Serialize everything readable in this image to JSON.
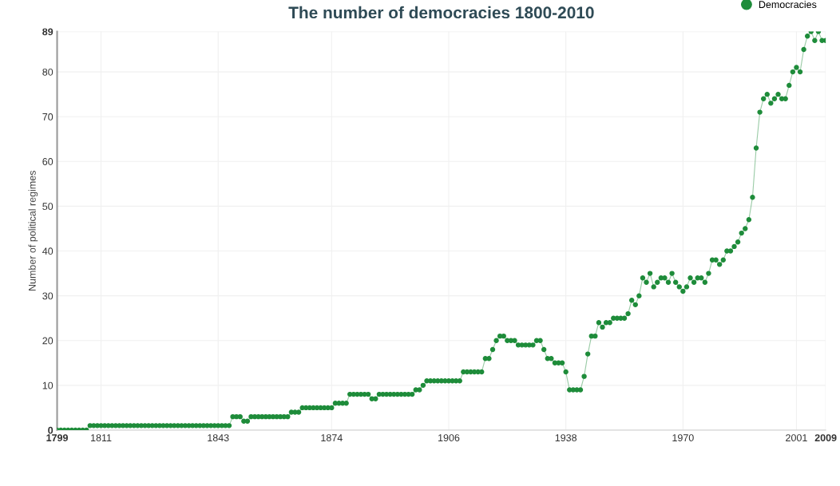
{
  "chart_data": {
    "type": "line",
    "title": "The number of democracies 1800-2010",
    "ylabel": "Number of political regimes",
    "x": [
      1799,
      1800,
      1801,
      1802,
      1803,
      1804,
      1805,
      1806,
      1807,
      1808,
      1809,
      1810,
      1811,
      1812,
      1813,
      1814,
      1815,
      1816,
      1817,
      1818,
      1819,
      1820,
      1821,
      1822,
      1823,
      1824,
      1825,
      1826,
      1827,
      1828,
      1829,
      1830,
      1831,
      1832,
      1833,
      1834,
      1835,
      1836,
      1837,
      1838,
      1839,
      1840,
      1841,
      1842,
      1843,
      1844,
      1845,
      1846,
      1847,
      1848,
      1849,
      1850,
      1851,
      1852,
      1853,
      1854,
      1855,
      1856,
      1857,
      1858,
      1859,
      1860,
      1861,
      1862,
      1863,
      1864,
      1865,
      1866,
      1867,
      1868,
      1869,
      1870,
      1871,
      1872,
      1873,
      1874,
      1875,
      1876,
      1877,
      1878,
      1879,
      1880,
      1881,
      1882,
      1883,
      1884,
      1885,
      1886,
      1887,
      1888,
      1889,
      1890,
      1891,
      1892,
      1893,
      1894,
      1895,
      1896,
      1897,
      1898,
      1899,
      1900,
      1901,
      1902,
      1903,
      1904,
      1905,
      1906,
      1907,
      1908,
      1909,
      1910,
      1911,
      1912,
      1913,
      1914,
      1915,
      1916,
      1917,
      1918,
      1919,
      1920,
      1921,
      1922,
      1923,
      1924,
      1925,
      1926,
      1927,
      1928,
      1929,
      1930,
      1931,
      1932,
      1933,
      1934,
      1935,
      1936,
      1937,
      1938,
      1939,
      1940,
      1941,
      1942,
      1943,
      1944,
      1945,
      1946,
      1947,
      1948,
      1949,
      1950,
      1951,
      1952,
      1953,
      1954,
      1955,
      1956,
      1957,
      1958,
      1959,
      1960,
      1961,
      1962,
      1963,
      1964,
      1965,
      1966,
      1967,
      1968,
      1969,
      1970,
      1971,
      1972,
      1973,
      1974,
      1975,
      1976,
      1977,
      1978,
      1979,
      1980,
      1981,
      1982,
      1983,
      1984,
      1985,
      1986,
      1987,
      1988,
      1989,
      1990,
      1991,
      1992,
      1993,
      1994,
      1995,
      1996,
      1997,
      1998,
      1999,
      2000,
      2001,
      2002,
      2003,
      2004,
      2005,
      2006,
      2007,
      2008,
      2009
    ],
    "series": [
      {
        "name": "Democracies",
        "color": "#1e8c3a",
        "values": [
          0,
          0,
          0,
          0,
          0,
          0,
          0,
          0,
          0,
          1,
          1,
          1,
          1,
          1,
          1,
          1,
          1,
          1,
          1,
          1,
          1,
          1,
          1,
          1,
          1,
          1,
          1,
          1,
          1,
          1,
          1,
          1,
          1,
          1,
          1,
          1,
          1,
          1,
          1,
          1,
          1,
          1,
          1,
          1,
          1,
          1,
          1,
          1,
          3,
          3,
          3,
          2,
          2,
          3,
          3,
          3,
          3,
          3,
          3,
          3,
          3,
          3,
          3,
          3,
          4,
          4,
          4,
          5,
          5,
          5,
          5,
          5,
          5,
          5,
          5,
          5,
          6,
          6,
          6,
          6,
          8,
          8,
          8,
          8,
          8,
          8,
          7,
          7,
          8,
          8,
          8,
          8,
          8,
          8,
          8,
          8,
          8,
          8,
          9,
          9,
          10,
          11,
          11,
          11,
          11,
          11,
          11,
          11,
          11,
          11,
          11,
          13,
          13,
          13,
          13,
          13,
          13,
          16,
          16,
          18,
          20,
          21,
          21,
          20,
          20,
          20,
          19,
          19,
          19,
          19,
          19,
          20,
          20,
          18,
          16,
          16,
          15,
          15,
          15,
          13,
          9,
          9,
          9,
          9,
          12,
          17,
          21,
          21,
          24,
          23,
          24,
          24,
          25,
          25,
          25,
          25,
          26,
          29,
          28,
          30,
          34,
          33,
          35,
          32,
          33,
          34,
          34,
          33,
          35,
          33,
          32,
          31,
          32,
          34,
          33,
          34,
          34,
          33,
          35,
          38,
          38,
          37,
          38,
          40,
          40,
          41,
          42,
          44,
          45,
          47,
          52,
          63,
          71,
          74,
          75,
          73,
          74,
          75,
          74,
          74,
          77,
          80,
          81,
          80,
          85,
          88,
          89,
          87,
          89,
          87,
          87
        ]
      }
    ],
    "xlim": [
      1799,
      2009
    ],
    "xticks": [
      1799,
      1811,
      1843,
      1874,
      1906,
      1938,
      1970,
      2001,
      2009
    ],
    "ylim": [
      0,
      89
    ],
    "yticks": [
      0,
      10,
      20,
      30,
      40,
      50,
      60,
      70,
      80,
      89
    ],
    "grid": true,
    "legend": "top right",
    "marker": "circle",
    "line_style": "solid"
  }
}
